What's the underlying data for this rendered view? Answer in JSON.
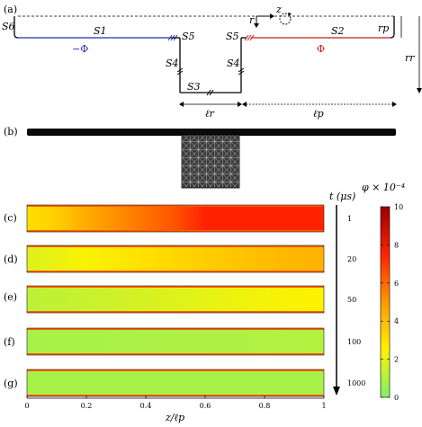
{
  "panel_labels": [
    "(a)",
    "(b)",
    "(c)",
    "(d)",
    "(e)",
    "(f)",
    "(g)"
  ],
  "schematic": {
    "labels": {
      "s6": "S6",
      "s1": "S1",
      "s5_left": "S5",
      "s5_right": "S5",
      "s2": "S2",
      "s4_left": "S4",
      "s4_right": "S4",
      "s3": "S3",
      "neg_phi": "−Φ",
      "phi": "Φ",
      "z": "z",
      "r": "r",
      "rp": "rp",
      "rr": "rr",
      "lr": "ℓr",
      "lp": "ℓp"
    },
    "colors": {
      "left_channel": "#1f2fb5",
      "right_channel": "#c81e1e",
      "outline": "#000000"
    }
  },
  "colorbar": {
    "title": "φ × 10⁻⁴",
    "ticks": [
      "0",
      "2",
      "4",
      "6",
      "8",
      "10"
    ],
    "tick_values": [
      0,
      2,
      4,
      6,
      8,
      10
    ],
    "min": 0,
    "max": 10,
    "colors": [
      "#7ff06a",
      "#fff200",
      "#ff9900",
      "#ff2200",
      "#9a0000"
    ]
  },
  "time_axis": {
    "label": "t (μs)",
    "values": [
      "1",
      "20",
      "50",
      "100",
      "1000"
    ]
  },
  "strip_x_axis": {
    "label": "z/ℓp",
    "ticks": [
      "0",
      "0.2",
      "0.4",
      "0.6",
      "0.8",
      "1"
    ],
    "tick_values": [
      0,
      0.2,
      0.4,
      0.6,
      0.8,
      1
    ]
  },
  "chart_data": {
    "type": "heatmap",
    "xlabel": "z/ℓp",
    "xlim": [
      0,
      1
    ],
    "colorbar_label": "φ × 10⁻⁴",
    "colorbar_range": [
      0,
      10
    ],
    "series": [
      {
        "name": "1",
        "x": [
          0,
          0.1,
          0.2,
          0.35,
          0.5,
          0.55,
          0.6,
          1.0
        ],
        "phi": [
          3,
          3.5,
          4.5,
          5.5,
          6.5,
          7,
          7.5,
          7.5
        ]
      },
      {
        "name": "20",
        "x": [
          0,
          0.2,
          0.4,
          0.6,
          0.8,
          1.0
        ],
        "phi": [
          1.8,
          2.4,
          3,
          3.5,
          4,
          4.3
        ]
      },
      {
        "name": "50",
        "x": [
          0,
          0.2,
          0.4,
          0.6,
          0.8,
          1.0
        ],
        "phi": [
          1.2,
          1.4,
          1.7,
          2,
          2.3,
          2.5
        ]
      },
      {
        "name": "100",
        "x": [
          0,
          0.5,
          1.0
        ],
        "phi": [
          0.8,
          0.9,
          1
        ]
      },
      {
        "name": "1000",
        "x": [
          0,
          1.0
        ],
        "phi": [
          0.8,
          0.8
        ]
      }
    ]
  }
}
